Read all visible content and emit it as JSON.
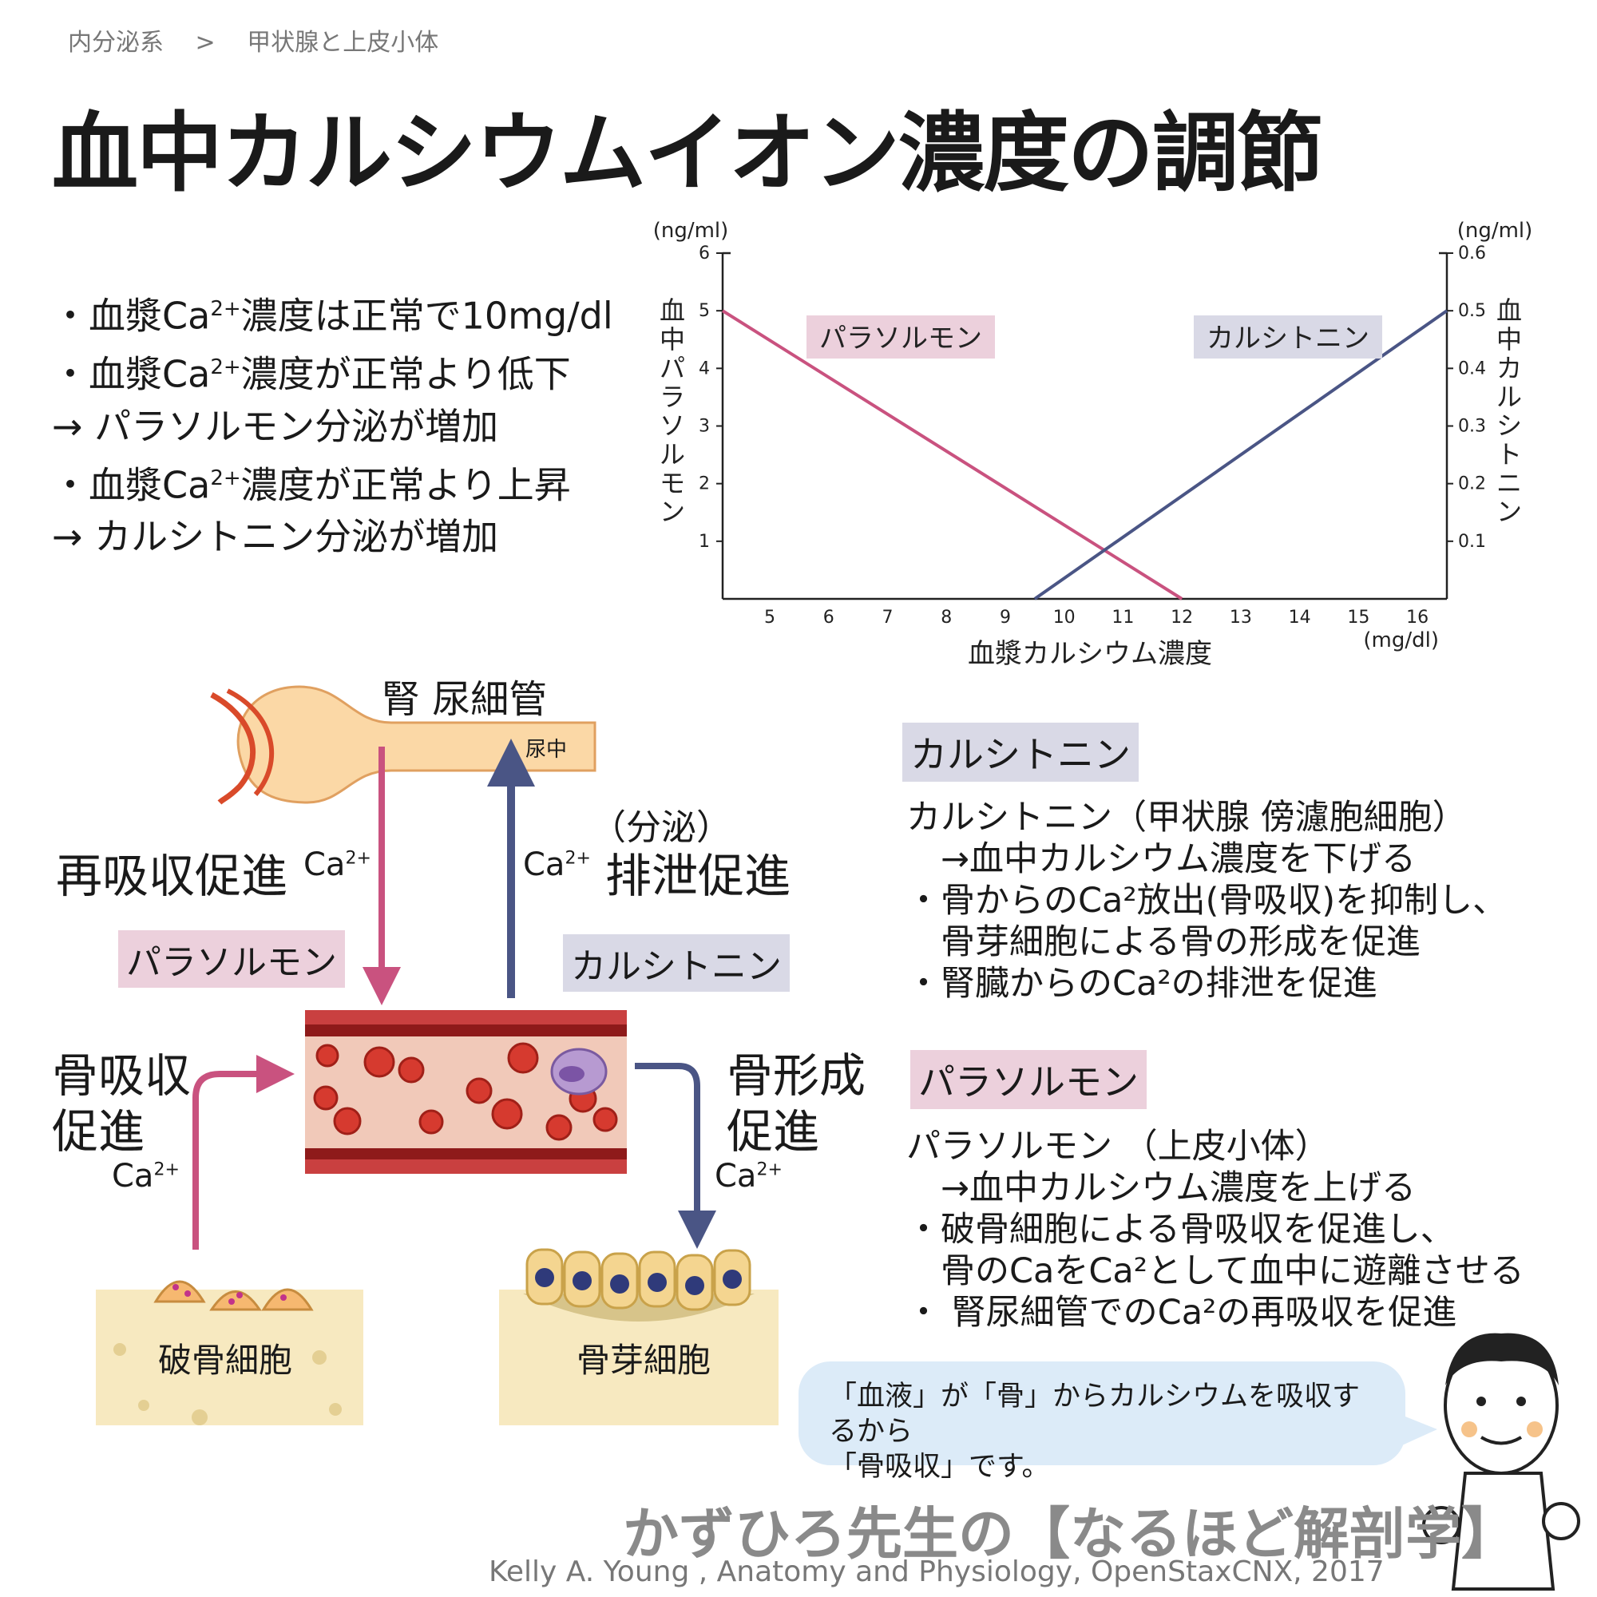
{
  "breadcrumb": {
    "section": "内分泌系",
    "sep": ">",
    "page": "甲状腺と上皮小体"
  },
  "title": "血中カルシウムイオン濃度の調節",
  "bullets": {
    "l1_pre": "・血漿Ca",
    "l1_sup": "2+",
    "l1_post": "濃度は正常で10mg/dl",
    "l2_pre": "・血漿Ca",
    "l2_sup": "2+",
    "l2_post": "濃度が正常より低下",
    "l3": " → パラソルモン分泌が増加",
    "l4_pre": "・血漿Ca",
    "l4_sup": "2+",
    "l4_post": "濃度が正常より上昇",
    "l5": " → カルシトニン分泌が増加"
  },
  "chart_data": {
    "type": "line",
    "xlabel": "血漿カルシウム濃度",
    "xunit": "(mg/dl)",
    "x_ticks": [
      "5",
      "6",
      "7",
      "8",
      "9",
      "10",
      "11",
      "12",
      "13",
      "14",
      "15",
      "16"
    ],
    "xlim": [
      4.2,
      16.5
    ],
    "y_left": {
      "label": "血中パラソルモン",
      "unit": "(ng/ml)",
      "ticks": [
        "1",
        "2",
        "3",
        "4",
        "5",
        "6"
      ],
      "ylim": [
        0,
        6
      ]
    },
    "y_right": {
      "label": "血中カルシトニン",
      "unit": "(ng/ml)",
      "ticks": [
        "0.1",
        "0.2",
        "0.3",
        "0.4",
        "0.5",
        "0.6"
      ],
      "ylim": [
        0,
        0.6
      ]
    },
    "series": [
      {
        "name": "パラソルモン",
        "axis": "left",
        "color": "#c9527f",
        "x": [
          4.2,
          12.0
        ],
        "y": [
          5.0,
          0.0
        ]
      },
      {
        "name": "カルシトニン",
        "axis": "right",
        "color": "#4a5585",
        "x": [
          9.5,
          16.5
        ],
        "y": [
          0.0,
          0.5
        ]
      }
    ]
  },
  "diagram": {
    "kidney_label": "腎 尿細管",
    "urine_label": "尿中",
    "reabsorb": "再吸収促進",
    "secretion": "（分泌）",
    "excretion": "排泄促進",
    "ca": "Ca",
    "ca_sup": "2+",
    "pth": "パラソルモン",
    "calcitonin": "カルシトニン",
    "bone_resorb_1": "骨吸収",
    "bone_resorb_2": "促進",
    "bone_form_1": "骨形成",
    "bone_form_2": "促進",
    "osteoclast": "破骨細胞",
    "osteoblast": "骨芽細胞"
  },
  "colors": {
    "pink": "#c9527f",
    "blue": "#4a5585",
    "pink_tag": "#ecd0dc",
    "blue_tag": "#d9d9e6",
    "bubble": "#dcebf8"
  },
  "calcitonin_box": {
    "tag": "カルシトニン",
    "l1": "カルシトニン（甲状腺 傍濾胞細胞）",
    "l2": "　→血中カルシウム濃度を下げる",
    "l3": "・骨からのCa²放出(骨吸収)を抑制し、",
    "l4": "　骨芽細胞による骨の形成を促進",
    "l5": "・腎臓からのCa²の排泄を促進"
  },
  "pth_box": {
    "tag": "パラソルモン",
    "l1": "パラソルモン （上皮小体）",
    "l2": "　→血中カルシウム濃度を上げる",
    "l3": "・破骨細胞による骨吸収を促進し、",
    "l4": "　骨のCaをCa²として血中に遊離させる",
    "l5": "・ 腎尿細管でのCa²の再吸収を促進"
  },
  "bubble": {
    "l1": "「血液」が「骨」からカルシウムを吸収するから",
    "l2": "「骨吸収」です。"
  },
  "credit": {
    "jp": "かずひろ先生の【なるほど解剖学】",
    "en": "Kelly A. Young , Anatomy and Physiology, OpenStaxCNX, 2017"
  }
}
